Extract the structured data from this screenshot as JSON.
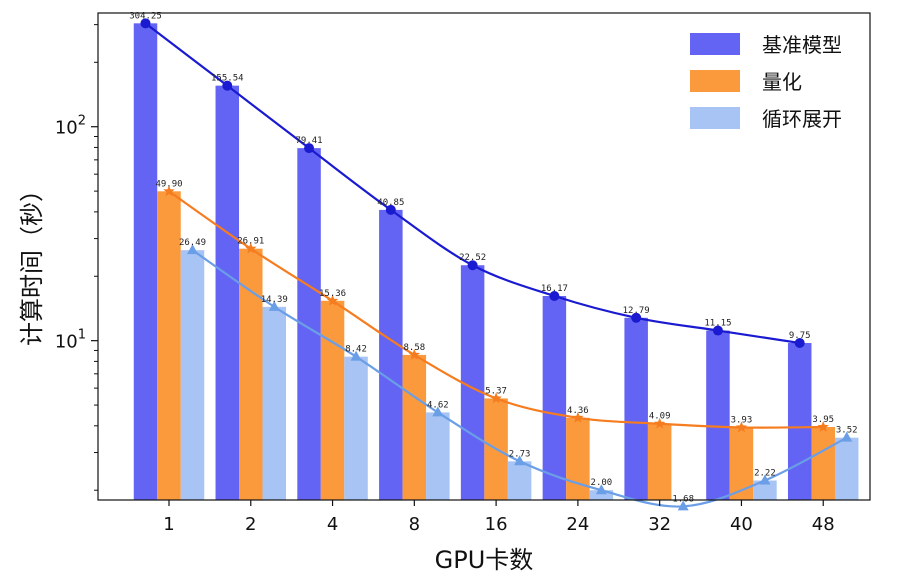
{
  "chart_data": {
    "type": "bar",
    "overlay": "line",
    "y_scale": "log",
    "title": "",
    "xlabel": "GPU卡数",
    "ylabel": "计算时间（秒）",
    "categories": [
      "1",
      "2",
      "4",
      "8",
      "16",
      "24",
      "32",
      "40",
      "48"
    ],
    "ylim": [
      1.8,
      340
    ],
    "y_ticks": [
      {
        "value": 100,
        "base": "10",
        "exp": "2"
      },
      {
        "value": 10,
        "base": "10",
        "exp": "1"
      }
    ],
    "legend_position": "top-right",
    "series": [
      {
        "name": "基准模型",
        "bar_color": "#6464f4",
        "line_color": "#1a1ad0",
        "marker": "circle",
        "values": [
          304.25,
          155.54,
          79.41,
          40.85,
          22.52,
          16.17,
          12.79,
          11.15,
          9.75
        ],
        "labels": [
          "304.25",
          "155.54",
          "79.41",
          "40.85",
          "22.52",
          "16.17",
          "12.79",
          "11.15",
          "9.75"
        ]
      },
      {
        "name": "量化",
        "bar_color": "#fb9a3c",
        "line_color": "#f57c1f",
        "marker": "star",
        "values": [
          49.9,
          26.91,
          15.36,
          8.58,
          5.37,
          4.36,
          4.09,
          3.93,
          3.95
        ],
        "labels": [
          "49.90",
          "26.91",
          "15.36",
          "8.58",
          "5.37",
          "4.36",
          "4.09",
          "3.93",
          "3.95"
        ]
      },
      {
        "name": "循环展开",
        "bar_color": "#a7c4f4",
        "line_color": "#6a9ee6",
        "marker": "triangle",
        "values": [
          26.49,
          14.39,
          8.42,
          4.62,
          2.73,
          2.0,
          1.68,
          2.22,
          3.52
        ],
        "labels": [
          "26.49",
          "14.39",
          "8.42",
          "4.62",
          "2.73",
          "2.00",
          "1.68",
          "2.22",
          "3.52"
        ]
      }
    ]
  }
}
